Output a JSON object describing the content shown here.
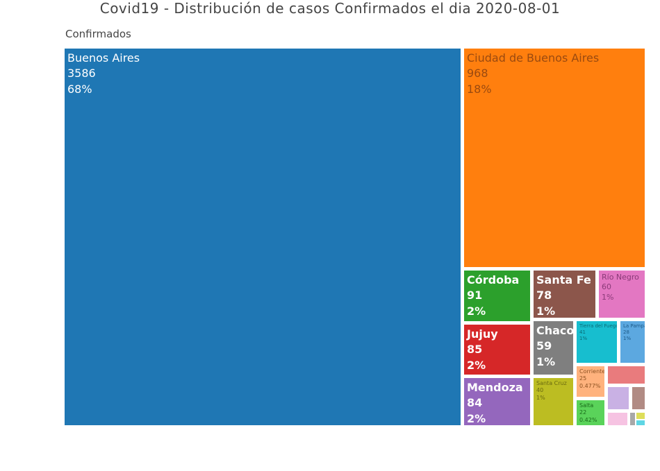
{
  "chart_data": {
    "type": "treemap",
    "title": "Covid19 - Distribución de casos Confirmados el dia  2020-08-01",
    "root_label": "Confirmados",
    "items": [
      {
        "label": "Buenos Aires",
        "value": "3586",
        "percent": "68%",
        "color": "#1f77b4"
      },
      {
        "label": "Ciudad de Buenos Aires",
        "value": "968",
        "percent": "18%",
        "color": "#ff7f0e"
      },
      {
        "label": "Córdoba",
        "value": "91",
        "percent": "2%",
        "color": "#2ca02c"
      },
      {
        "label": "Jujuy",
        "value": "85",
        "percent": "2%",
        "color": "#d62728"
      },
      {
        "label": "Mendoza",
        "value": "84",
        "percent": "2%",
        "color": "#9467bd"
      },
      {
        "label": "Santa Fe",
        "value": "78",
        "percent": "1%",
        "color": "#8c564b"
      },
      {
        "label": "Río Negro",
        "value": "60",
        "percent": "1%",
        "color": "#e377c2"
      },
      {
        "label": "Chaco",
        "value": "59",
        "percent": "1%",
        "color": "#7f7f7f"
      },
      {
        "label": "Santa Cruz",
        "value": "40",
        "percent": "1%",
        "color": "#bcbd22"
      },
      {
        "label": "Tierra del Fuego",
        "value": "41",
        "percent": "1%",
        "color": "#17becf"
      },
      {
        "label": "La Pampa",
        "value": "28",
        "percent": "1%",
        "color": "#5ca8e0"
      },
      {
        "label": "Corrientes",
        "value": "25",
        "percent": "0.477%",
        "color": "#ffb27d"
      },
      {
        "label": "Salta",
        "value": "22",
        "percent": "0.42%",
        "color": "#5ad35a"
      },
      {
        "label": "",
        "value": "",
        "percent": "",
        "color": "#e97b7d"
      },
      {
        "label": "",
        "value": "",
        "percent": "",
        "color": "#c9b1e4"
      },
      {
        "label": "",
        "value": "",
        "percent": "",
        "color": "#b18b84"
      },
      {
        "label": "",
        "value": "",
        "percent": "",
        "color": "#f6c3e2"
      },
      {
        "label": "",
        "value": "",
        "percent": "",
        "color": "#a8a8a8"
      },
      {
        "label": "",
        "value": "",
        "percent": "",
        "color": "#dede5a"
      },
      {
        "label": "",
        "value": "",
        "percent": "",
        "color": "#5fd6e4"
      }
    ]
  }
}
